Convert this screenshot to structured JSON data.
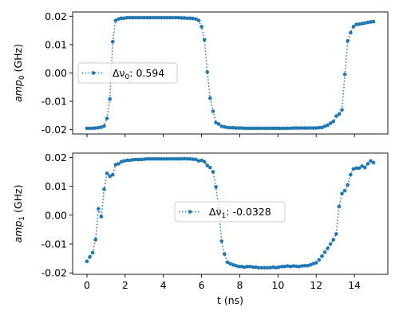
{
  "chart_data": [
    {
      "type": "line",
      "ylabel_var": "amp",
      "ylabel_sub": "0",
      "ylabel_unit": " (GHz)",
      "xlim": [
        -0.75,
        15.75
      ],
      "ylim": [
        -0.0215,
        0.0215
      ],
      "x_ticks": [
        0,
        2,
        4,
        6,
        8,
        10,
        12,
        14
      ],
      "x_tick_labels_visible": false,
      "y_ticks": [
        "-0.02",
        "-0.01",
        "0.00",
        "0.01",
        "0.02"
      ],
      "legend": {
        "position": "center-left",
        "label_prefix": "Δν",
        "label_sub": "0",
        "label_value": ": 0.594"
      },
      "series": [
        {
          "marker": "circle",
          "linestyle": "dotted",
          "color": "#1f77b4",
          "x": [
            0,
            0.15,
            0.3,
            0.45,
            0.6,
            0.75,
            0.9,
            1.05,
            1.2,
            1.35,
            1.5,
            1.65,
            1.8,
            1.95,
            2.1,
            2.25,
            2.4,
            2.55,
            2.7,
            2.85,
            3.0,
            3.15,
            3.3,
            3.45,
            3.6,
            3.75,
            3.9,
            4.05,
            4.2,
            4.35,
            4.5,
            4.65,
            4.8,
            4.95,
            5.1,
            5.25,
            5.4,
            5.55,
            5.7,
            5.85,
            6.0,
            6.15,
            6.3,
            6.45,
            6.6,
            6.75,
            6.9,
            7.05,
            7.2,
            7.35,
            7.5,
            7.65,
            7.8,
            7.95,
            8.1,
            8.25,
            8.4,
            8.55,
            8.7,
            8.85,
            9.0,
            9.15,
            9.3,
            9.45,
            9.6,
            9.75,
            9.9,
            10.05,
            10.2,
            10.35,
            10.5,
            10.65,
            10.8,
            10.95,
            11.1,
            11.25,
            11.4,
            11.55,
            11.7,
            11.85,
            12.0,
            12.15,
            12.3,
            12.45,
            12.6,
            12.75,
            12.9,
            13.05,
            13.2,
            13.35,
            13.5,
            13.65,
            13.8,
            13.95,
            14.1,
            14.25,
            14.4,
            14.55,
            14.7,
            14.85,
            15.0
          ],
          "y": [
            -0.0195,
            -0.0195,
            -0.0195,
            -0.0194,
            -0.0193,
            -0.0191,
            -0.0187,
            -0.016,
            -0.0092,
            0.011,
            0.0185,
            0.019,
            0.0193,
            0.0193,
            0.0195,
            0.0195,
            0.0195,
            0.0195,
            0.0195,
            0.0195,
            0.0195,
            0.0195,
            0.0195,
            0.0195,
            0.0195,
            0.0195,
            0.0195,
            0.0195,
            0.0195,
            0.0195,
            0.0195,
            0.0195,
            0.0195,
            0.0194,
            0.0194,
            0.0193,
            0.0193,
            0.0192,
            0.019,
            0.0185,
            0.0163,
            0.0117,
            0.0003,
            -0.0089,
            -0.0135,
            -0.0175,
            -0.018,
            -0.0188,
            -0.019,
            -0.0192,
            -0.0193,
            -0.0193,
            -0.0194,
            -0.0194,
            -0.0194,
            -0.0195,
            -0.0195,
            -0.0195,
            -0.0195,
            -0.0195,
            -0.0195,
            -0.0195,
            -0.0195,
            -0.0195,
            -0.0195,
            -0.0195,
            -0.0195,
            -0.0195,
            -0.0195,
            -0.0195,
            -0.0195,
            -0.0195,
            -0.0194,
            -0.0194,
            -0.0194,
            -0.0194,
            -0.0194,
            -0.0194,
            -0.0194,
            -0.0194,
            -0.0194,
            -0.0193,
            -0.0192,
            -0.0188,
            -0.0184,
            -0.0177,
            -0.0171,
            -0.0152,
            -0.0145,
            -0.013,
            -0.0005,
            0.0113,
            0.0142,
            0.0163,
            0.0171,
            0.0172,
            0.0174,
            0.0176,
            0.0178,
            0.018,
            0.0181
          ]
        }
      ]
    },
    {
      "type": "line",
      "xlabel": "t (ns)",
      "ylabel_var": "amp",
      "ylabel_sub": "1",
      "ylabel_unit": " (GHz)",
      "xlim": [
        -0.75,
        15.75
      ],
      "ylim": [
        -0.0205,
        0.0215
      ],
      "x_ticks": [
        0,
        2,
        4,
        6,
        8,
        10,
        12,
        14
      ],
      "x_tick_labels": [
        "0",
        "2",
        "4",
        "6",
        "8",
        "10",
        "12",
        "14"
      ],
      "y_ticks": [
        "-0.02",
        "-0.01",
        "0.00",
        "0.01",
        "0.02"
      ],
      "legend": {
        "position": "center",
        "label_prefix": "Δν",
        "label_sub": "1",
        "label_value": ": -0.0328"
      },
      "series": [
        {
          "marker": "circle",
          "linestyle": "dotted",
          "color": "#1f77b4",
          "x": [
            0,
            0.15,
            0.3,
            0.45,
            0.6,
            0.75,
            0.9,
            1.05,
            1.2,
            1.35,
            1.5,
            1.65,
            1.8,
            1.95,
            2.1,
            2.25,
            2.4,
            2.55,
            2.7,
            2.85,
            3.0,
            3.15,
            3.3,
            3.45,
            3.6,
            3.75,
            3.9,
            4.05,
            4.2,
            4.35,
            4.5,
            4.65,
            4.8,
            4.95,
            5.1,
            5.25,
            5.4,
            5.55,
            5.7,
            5.85,
            6.0,
            6.15,
            6.3,
            6.45,
            6.6,
            6.75,
            6.9,
            7.05,
            7.2,
            7.35,
            7.5,
            7.65,
            7.8,
            7.95,
            8.1,
            8.25,
            8.4,
            8.55,
            8.7,
            8.85,
            9.0,
            9.15,
            9.3,
            9.45,
            9.6,
            9.75,
            9.9,
            10.05,
            10.2,
            10.35,
            10.5,
            10.65,
            10.8,
            10.95,
            11.1,
            11.25,
            11.4,
            11.55,
            11.7,
            11.85,
            12.0,
            12.15,
            12.3,
            12.45,
            12.6,
            12.75,
            12.9,
            13.05,
            13.2,
            13.35,
            13.5,
            13.65,
            13.8,
            13.95,
            14.1,
            14.25,
            14.4,
            14.55,
            14.7,
            14.85,
            15.0
          ],
          "y": [
            -0.016,
            -0.0145,
            -0.013,
            -0.0085,
            0.0022,
            -0.0005,
            0.009,
            0.0145,
            0.0135,
            0.014,
            0.0175,
            0.0178,
            0.0185,
            0.0188,
            0.019,
            0.019,
            0.0192,
            0.0193,
            0.0193,
            0.0193,
            0.0194,
            0.0195,
            0.0195,
            0.0195,
            0.0195,
            0.0195,
            0.0195,
            0.0195,
            0.0195,
            0.0195,
            0.0195,
            0.0195,
            0.0195,
            0.0195,
            0.0196,
            0.0195,
            0.0195,
            0.0194,
            0.0193,
            0.0188,
            0.019,
            0.0185,
            0.0172,
            0.0165,
            0.015,
            0.0098,
            0.0022,
            -0.009,
            -0.0135,
            -0.0163,
            -0.0168,
            -0.0172,
            -0.0175,
            -0.0178,
            -0.0178,
            -0.018,
            -0.0178,
            -0.0178,
            -0.018,
            -0.018,
            -0.0182,
            -0.0182,
            -0.0182,
            -0.0182,
            -0.0182,
            -0.018,
            -0.0182,
            -0.018,
            -0.0178,
            -0.0178,
            -0.0176,
            -0.0178,
            -0.0176,
            -0.0177,
            -0.0178,
            -0.0176,
            -0.0175,
            -0.0175,
            -0.0172,
            -0.0168,
            -0.0165,
            -0.0155,
            -0.0142,
            -0.0128,
            -0.0115,
            -0.01,
            -0.0085,
            -0.0065,
            0.003,
            0.0075,
            0.0085,
            0.0105,
            0.014,
            0.016,
            0.0163,
            0.0163,
            0.017,
            0.0165,
            0.0178,
            0.0188,
            0.0182
          ]
        }
      ]
    }
  ]
}
